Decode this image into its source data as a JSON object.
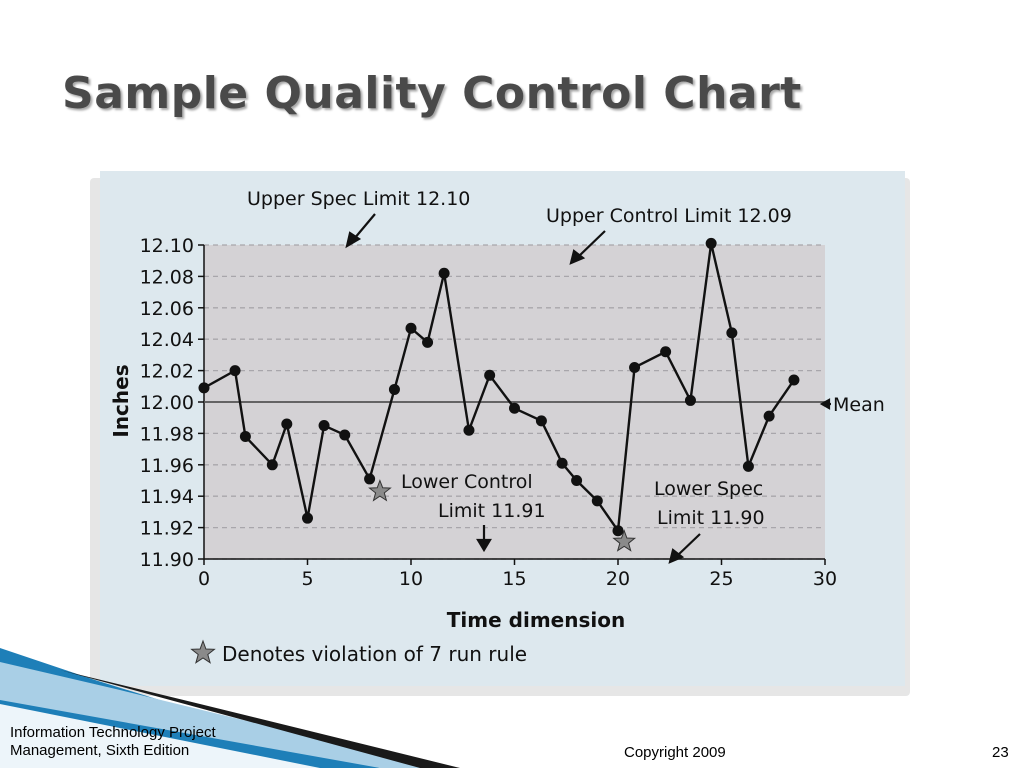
{
  "slide": {
    "title": "Sample Quality Control Chart",
    "footer_line1": "Information Technology Project",
    "footer_line2": "Management, Sixth Edition",
    "copyright": "Copyright 2009",
    "page_number": "23"
  },
  "colors": {
    "figure_bg": "#dde8ee",
    "plot_bg": "#d4d2d5",
    "accent_blue": "#1e7fb8",
    "title_gray": "#4a4a4a",
    "marker": "#111111",
    "star": "#8a8a8a"
  },
  "annotations": {
    "upper_spec": "Upper Spec Limit 12.10",
    "upper_control": "Upper Control Limit 12.09",
    "lower_control_1": "Lower Control",
    "lower_control_2": "Limit 11.91",
    "lower_spec_1": "Lower Spec",
    "lower_spec_2": "Limit 11.90",
    "mean": "Mean",
    "violation_legend": "Denotes violation of 7 run rule"
  },
  "chart_data": {
    "type": "line",
    "xlabel": "Time dimension",
    "ylabel": "Inches",
    "xlim": [
      0,
      30
    ],
    "ylim": [
      11.9,
      12.1
    ],
    "x_ticks": [
      "0",
      "5",
      "10",
      "15",
      "20",
      "25",
      "30"
    ],
    "y_ticks": [
      "12.10",
      "12.08",
      "12.06",
      "12.04",
      "12.02",
      "12.00",
      "11.98",
      "11.96",
      "11.94",
      "11.92",
      "11.90"
    ],
    "grid": "horizontal dashed",
    "mean": 12.0,
    "upper_spec_limit": 12.1,
    "upper_control_limit": 12.09,
    "lower_control_limit": 11.91,
    "lower_spec_limit": 11.9,
    "series": [
      {
        "x": [
          0,
          1.5,
          2,
          3.3,
          4,
          5,
          5.8,
          6.8,
          8,
          9.2,
          10,
          10.8,
          11.6,
          12.8,
          13.8,
          15,
          16.3,
          17.3,
          18,
          19,
          20,
          20.8,
          22.3,
          23.5,
          24.5,
          25.5,
          26.3,
          27.3,
          28.5
        ],
        "y": [
          12.009,
          12.02,
          11.978,
          11.96,
          11.986,
          11.926,
          11.985,
          11.979,
          11.951,
          12.008,
          12.047,
          12.038,
          12.082,
          11.982,
          12.017,
          11.996,
          11.988,
          11.961,
          11.95,
          11.937,
          11.918,
          12.022,
          12.032,
          12.001,
          12.101,
          12.044,
          11.959,
          11.991,
          12.014
        ]
      }
    ],
    "violation_points": [
      {
        "x": 8.5,
        "y": 11.943
      },
      {
        "x": 20.3,
        "y": 11.911
      }
    ]
  }
}
